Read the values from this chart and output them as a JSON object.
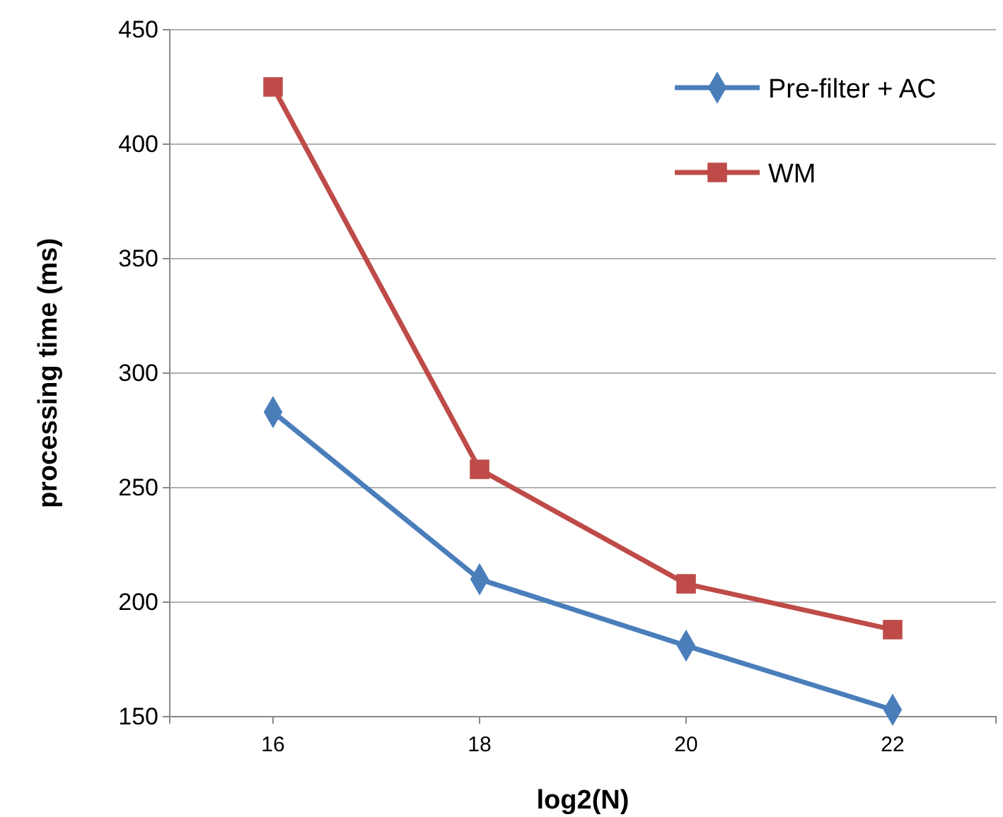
{
  "chart_data": {
    "type": "line",
    "xlabel": "log2(N)",
    "ylabel": "processing time (ms)",
    "categories": [
      "16",
      "18",
      "20",
      "22"
    ],
    "series": [
      {
        "name": "Pre-filter + AC",
        "color": "#4a7ebb",
        "values": [
          283,
          210,
          181,
          153
        ],
        "marker": "diamond"
      },
      {
        "name": "WM",
        "color": "#be4b48",
        "values": [
          425,
          258,
          208,
          188
        ],
        "marker": "square"
      }
    ],
    "ylim": [
      150,
      450
    ],
    "yticks": [
      150,
      200,
      250,
      300,
      350,
      400,
      450
    ],
    "grid": "y",
    "legend": "top right",
    "line_style": "solid"
  }
}
